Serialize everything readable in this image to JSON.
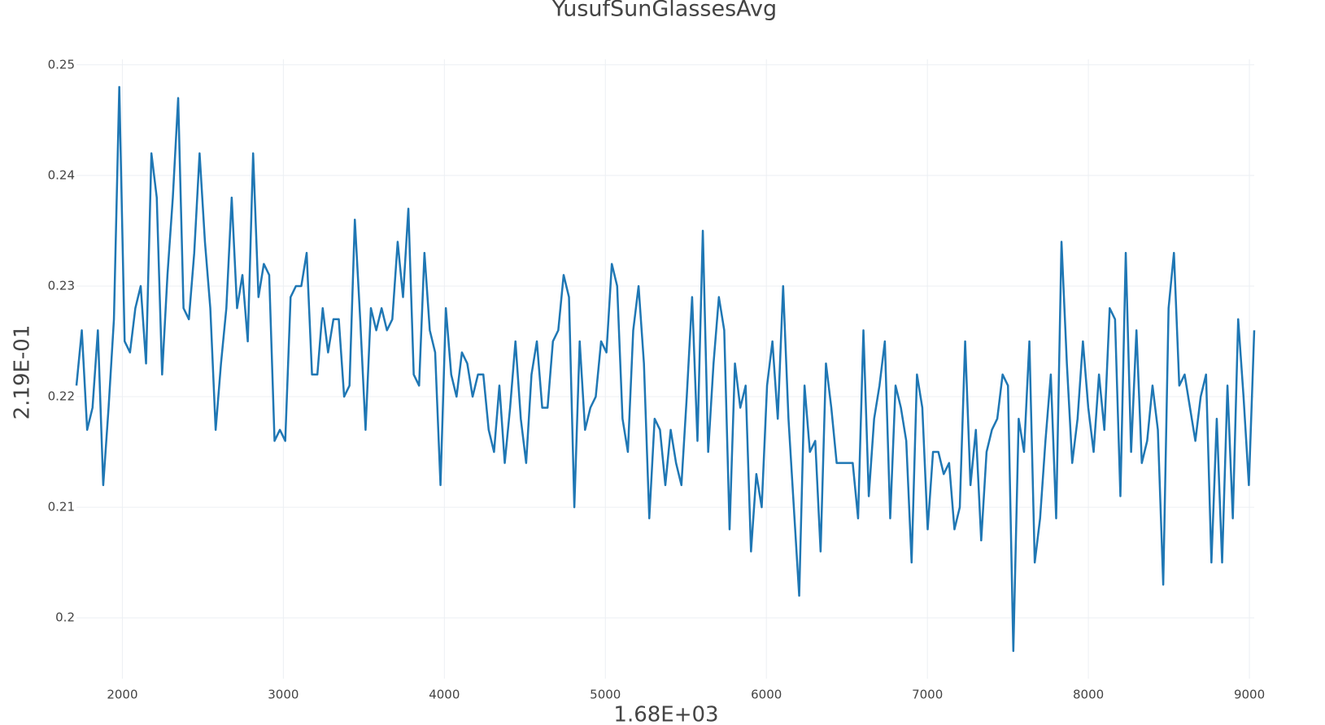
{
  "chart_data": {
    "type": "line",
    "title": "YusufSunGlassesAvg",
    "x_label": "1.68E+03",
    "y_label": "2.19E-01",
    "grid": true,
    "xlim": [
      1715,
      9030
    ],
    "xticks": [
      2000,
      3000,
      4000,
      5000,
      6000,
      7000,
      8000,
      9000
    ],
    "ylim": [
      0.1945,
      0.2505
    ],
    "yticks": [
      0.2,
      0.21,
      0.22,
      0.23,
      0.24,
      0.25
    ],
    "x": [
      1715,
      1748.25,
      1781.5,
      1814.75,
      1848,
      1881.25,
      1914.5,
      1947.75,
      1981,
      2014.25,
      2047.5,
      2080.75,
      2114,
      2147.25,
      2180.5,
      2213.75,
      2247,
      2280.25,
      2313.5,
      2346.75,
      2380,
      2413.25,
      2446.5,
      2479.75,
      2513,
      2546.25,
      2579.5,
      2612.75,
      2646,
      2679.25,
      2712.5,
      2745.75,
      2779,
      2812.25,
      2845.5,
      2878.75,
      2912,
      2945.25,
      2978.5,
      3011.75,
      3045,
      3078.25,
      3111.5,
      3144.75,
      3178,
      3211.25,
      3244.5,
      3277.75,
      3311,
      3344.25,
      3377.5,
      3410.75,
      3444,
      3477.25,
      3510.5,
      3543.75,
      3577,
      3610.25,
      3643.5,
      3676.75,
      3710,
      3743.25,
      3776.5,
      3809.75,
      3843,
      3876.25,
      3909.5,
      3942.75,
      3976,
      4009.25,
      4042.5,
      4075.75,
      4109,
      4142.25,
      4175.5,
      4208.75,
      4242,
      4275.25,
      4308.5,
      4341.75,
      4375,
      4408.25,
      4441.5,
      4474.75,
      4508,
      4541.25,
      4574.5,
      4607.75,
      4641,
      4674.25,
      4707.5,
      4740.75,
      4774,
      4807.25,
      4840.5,
      4873.75,
      4907,
      4940.25,
      4973.5,
      5006.75,
      5040,
      5073.25,
      5106.5,
      5139.75,
      5173,
      5206.25,
      5239.5,
      5272.75,
      5306,
      5339.25,
      5372.5,
      5405.75,
      5439,
      5472.25,
      5505.5,
      5538.75,
      5572,
      5605.25,
      5638.5,
      5671.75,
      5705,
      5738.25,
      5771.5,
      5804.75,
      5838,
      5871.25,
      5904.5,
      5937.75,
      5971,
      6004.25,
      6037.5,
      6070.75,
      6104,
      6137.25,
      6170.5,
      6203.75,
      6237,
      6270.25,
      6303.5,
      6336.75,
      6370,
      6403.25,
      6436.5,
      6469.75,
      6503,
      6536.25,
      6569.5,
      6602.75,
      6636,
      6669.25,
      6702.5,
      6735.75,
      6769,
      6802.25,
      6835.5,
      6868.75,
      6902,
      6935.25,
      6968.5,
      7001.75,
      7035,
      7068.25,
      7101.5,
      7134.75,
      7168,
      7201.25,
      7234.5,
      7267.75,
      7301,
      7334.25,
      7367.5,
      7400.75,
      7434,
      7467.25,
      7500.5,
      7533.75,
      7567,
      7600.25,
      7633.5,
      7666.75,
      7700,
      7733.25,
      7766.5,
      7799.75,
      7833,
      7866.25,
      7899.5,
      7932.75,
      7966,
      7999.25,
      8032.5,
      8065.75,
      8099,
      8132.25,
      8165.5,
      8198.75,
      8232,
      8265.25,
      8298.5,
      8331.75,
      8365,
      8398.25,
      8431.5,
      8464.75,
      8498,
      8531.25,
      8564.5,
      8597.75,
      8631,
      8664.25,
      8697.5,
      8730.75,
      8764,
      8797.25,
      8830.5,
      8863.75,
      8897,
      8930.25,
      8963.5,
      8996.75,
      9030
    ],
    "series": [
      {
        "name": "YusufSunGlassesAvg",
        "color": "#1f77b4",
        "values": [
          0.221,
          0.226,
          0.217,
          0.219,
          0.226,
          0.212,
          0.219,
          0.227,
          0.248,
          0.225,
          0.224,
          0.228,
          0.23,
          0.223,
          0.242,
          0.238,
          0.222,
          0.231,
          0.238,
          0.247,
          0.228,
          0.227,
          0.233,
          0.242,
          0.234,
          0.228,
          0.217,
          0.223,
          0.228,
          0.238,
          0.228,
          0.231,
          0.225,
          0.242,
          0.229,
          0.232,
          0.231,
          0.216,
          0.217,
          0.216,
          0.229,
          0.23,
          0.23,
          0.233,
          0.222,
          0.222,
          0.228,
          0.224,
          0.227,
          0.227,
          0.22,
          0.221,
          0.236,
          0.227,
          0.217,
          0.228,
          0.226,
          0.228,
          0.226,
          0.227,
          0.234,
          0.229,
          0.237,
          0.222,
          0.221,
          0.233,
          0.226,
          0.224,
          0.212,
          0.228,
          0.222,
          0.22,
          0.224,
          0.223,
          0.22,
          0.222,
          0.222,
          0.217,
          0.215,
          0.221,
          0.214,
          0.219,
          0.225,
          0.218,
          0.214,
          0.222,
          0.225,
          0.219,
          0.219,
          0.225,
          0.226,
          0.231,
          0.229,
          0.21,
          0.225,
          0.217,
          0.219,
          0.22,
          0.225,
          0.224,
          0.232,
          0.23,
          0.218,
          0.215,
          0.226,
          0.23,
          0.223,
          0.209,
          0.218,
          0.217,
          0.212,
          0.217,
          0.214,
          0.212,
          0.22,
          0.229,
          0.216,
          0.235,
          0.215,
          0.223,
          0.229,
          0.226,
          0.208,
          0.223,
          0.219,
          0.221,
          0.206,
          0.213,
          0.21,
          0.221,
          0.225,
          0.218,
          0.23,
          0.218,
          0.21,
          0.202,
          0.221,
          0.215,
          0.216,
          0.206,
          0.223,
          0.219,
          0.214,
          0.214,
          0.214,
          0.214,
          0.209,
          0.226,
          0.211,
          0.218,
          0.221,
          0.225,
          0.209,
          0.221,
          0.219,
          0.216,
          0.205,
          0.222,
          0.219,
          0.208,
          0.215,
          0.215,
          0.213,
          0.214,
          0.208,
          0.21,
          0.225,
          0.212,
          0.217,
          0.207,
          0.215,
          0.217,
          0.218,
          0.222,
          0.221,
          0.197,
          0.218,
          0.215,
          0.225,
          0.205,
          0.209,
          0.216,
          0.222,
          0.209,
          0.234,
          0.223,
          0.214,
          0.218,
          0.225,
          0.219,
          0.215,
          0.222,
          0.217,
          0.228,
          0.227,
          0.211,
          0.233,
          0.215,
          0.226,
          0.214,
          0.216,
          0.221,
          0.217,
          0.203,
          0.228,
          0.233,
          0.221,
          0.222,
          0.219,
          0.216,
          0.22,
          0.222,
          0.205,
          0.218,
          0.205,
          0.221,
          0.209,
          0.227,
          0.22,
          0.212,
          0.226
        ]
      }
    ]
  }
}
